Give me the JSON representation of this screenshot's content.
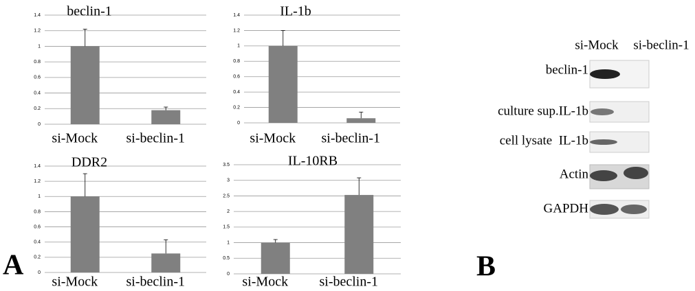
{
  "chart_data": [
    {
      "type": "bar",
      "title": "beclin-1",
      "categories": [
        "si-Mock",
        "si-beclin-1"
      ],
      "values": [
        1,
        0.18
      ],
      "errors": [
        0.22,
        0.04
      ],
      "color": "#808080",
      "ylim": [
        0,
        1.4
      ],
      "yticks": [
        0,
        0.2,
        0.4,
        0.6,
        0.8,
        1,
        1.2,
        1.4
      ],
      "grid": true
    },
    {
      "type": "bar",
      "title": "IL-1b",
      "categories": [
        "si-Mock",
        "si-beclin-1"
      ],
      "values": [
        1,
        0.06
      ],
      "errors": [
        0.2,
        0.08
      ],
      "color": "#808080",
      "ylim": [
        0,
        1.4
      ],
      "yticks": [
        0,
        0.2,
        0.4,
        0.6,
        0.8,
        1,
        1.2,
        1.4
      ],
      "grid": true
    },
    {
      "type": "bar",
      "title": "DDR2",
      "categories": [
        "si-Mock",
        "si-beclin-1"
      ],
      "values": [
        1,
        0.25
      ],
      "errors": [
        0.3,
        0.18
      ],
      "color": "#808080",
      "ylim": [
        0,
        1.4
      ],
      "yticks": [
        0,
        0.2,
        0.4,
        0.6,
        0.8,
        1,
        1.2,
        1.4
      ],
      "grid": true
    },
    {
      "type": "bar",
      "title": "IL-10RB",
      "categories": [
        "si-Mock",
        "si-beclin-1"
      ],
      "values": [
        1,
        2.53
      ],
      "errors": [
        0.1,
        0.55
      ],
      "color": "#808080",
      "ylim": [
        0,
        3.5
      ],
      "yticks": [
        0,
        0.5,
        1,
        1.5,
        2,
        2.5,
        3,
        3.5
      ],
      "grid": true
    }
  ],
  "blot": {
    "lanes": [
      "si-Mock",
      "si-beclin-1"
    ],
    "rows": [
      "beclin-1",
      "culture sup.IL-1b",
      "cell lysate  IL-1b",
      "Actin",
      "GAPDH"
    ]
  },
  "panel_labels": [
    "A",
    "B"
  ]
}
